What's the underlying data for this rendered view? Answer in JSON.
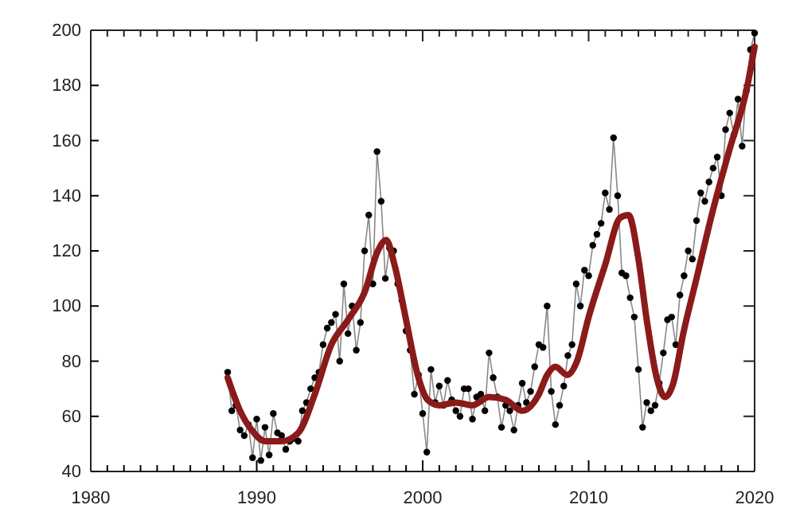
{
  "chart_data": {
    "type": "line",
    "xlim": [
      1980,
      2020
    ],
    "ylim": [
      40,
      200
    ],
    "xticks": [
      1980,
      {
        "value": 1981,
        "label": null
      },
      {
        "value": 1982,
        "label": null
      },
      {
        "value": 1983,
        "label": null
      },
      {
        "value": 1984,
        "label": null
      },
      {
        "value": 1985,
        "label": null
      },
      {
        "value": 1986,
        "label": null
      },
      {
        "value": 1987,
        "label": null
      },
      {
        "value": 1988,
        "label": null
      },
      {
        "value": 1989,
        "label": null
      },
      1990,
      {
        "value": 1991,
        "label": null
      },
      {
        "value": 1992,
        "label": null
      },
      {
        "value": 1993,
        "label": null
      },
      {
        "value": 1994,
        "label": null
      },
      {
        "value": 1995,
        "label": null
      },
      {
        "value": 1996,
        "label": null
      },
      {
        "value": 1997,
        "label": null
      },
      {
        "value": 1998,
        "label": null
      },
      {
        "value": 1999,
        "label": null
      },
      2000,
      {
        "value": 2001,
        "label": null
      },
      {
        "value": 2002,
        "label": null
      },
      {
        "value": 2003,
        "label": null
      },
      {
        "value": 2004,
        "label": null
      },
      {
        "value": 2005,
        "label": null
      },
      {
        "value": 2006,
        "label": null
      },
      {
        "value": 2007,
        "label": null
      },
      {
        "value": 2008,
        "label": null
      },
      {
        "value": 2009,
        "label": null
      },
      2010,
      {
        "value": 2011,
        "label": null
      },
      {
        "value": 2012,
        "label": null
      },
      {
        "value": 2013,
        "label": null
      },
      {
        "value": 2014,
        "label": null
      },
      {
        "value": 2015,
        "label": null
      },
      {
        "value": 2016,
        "label": null
      },
      {
        "value": 2017,
        "label": null
      },
      {
        "value": 2018,
        "label": null
      },
      {
        "value": 2019,
        "label": null
      },
      2020
    ],
    "yticks": [
      40,
      60,
      80,
      100,
      120,
      140,
      160,
      180,
      200
    ],
    "grid": false,
    "legend": false,
    "series": [
      {
        "color": "#000000",
        "marker": "circle",
        "line_style": "solid",
        "x": [
          1988.25,
          1988.5,
          1988.75,
          1989.0,
          1989.25,
          1989.5,
          1989.75,
          1990.0,
          1990.25,
          1990.5,
          1990.75,
          1991.0,
          1991.25,
          1991.5,
          1991.75,
          1992.0,
          1992.25,
          1992.5,
          1992.75,
          1993.0,
          1993.25,
          1993.5,
          1993.75,
          1994.0,
          1994.25,
          1994.5,
          1994.75,
          1995.0,
          1995.25,
          1995.5,
          1995.75,
          1996.0,
          1996.25,
          1996.5,
          1996.75,
          1997.0,
          1997.25,
          1997.5,
          1997.75,
          1998.0,
          1998.25,
          1998.5,
          1998.75,
          1999.0,
          1999.25,
          1999.5,
          1999.75,
          2000.0,
          2000.25,
          2000.5,
          2000.75,
          2001.0,
          2001.25,
          2001.5,
          2001.75,
          2002.0,
          2002.25,
          2002.5,
          2002.75,
          2003.0,
          2003.25,
          2003.5,
          2003.75,
          2004.0,
          2004.25,
          2004.5,
          2004.75,
          2005.0,
          2005.25,
          2005.5,
          2005.75,
          2006.0,
          2006.25,
          2006.5,
          2006.75,
          2007.0,
          2007.25,
          2007.5,
          2007.75,
          2008.0,
          2008.25,
          2008.5,
          2008.75,
          2009.0,
          2009.25,
          2009.5,
          2009.75,
          2010.0,
          2010.25,
          2010.5,
          2010.75,
          2011.0,
          2011.25,
          2011.5,
          2011.75,
          2012.0,
          2012.25,
          2012.5,
          2012.75,
          2013.0,
          2013.25,
          2013.5,
          2013.75,
          2014.0,
          2014.25,
          2014.5,
          2014.75,
          2015.0,
          2015.25,
          2015.5,
          2015.75,
          2016.0,
          2016.25,
          2016.5,
          2016.75,
          2017.0,
          2017.25,
          2017.5,
          2017.75,
          2018.0,
          2018.25,
          2018.5,
          2018.75,
          2019.0,
          2019.25,
          2019.5,
          2019.75,
          2020.0
        ],
        "values": [
          76,
          62,
          64,
          55,
          53,
          57,
          45,
          59,
          44,
          56,
          46,
          61,
          54,
          53,
          48,
          51,
          52,
          51,
          62,
          65,
          70,
          74,
          76,
          86,
          92,
          94,
          97,
          80,
          108,
          90,
          100,
          84,
          94,
          120,
          133,
          108,
          156,
          138,
          110,
          121,
          120,
          108,
          102,
          91,
          84,
          68,
          75,
          61,
          47,
          77,
          65,
          71,
          64,
          73,
          66,
          62,
          60,
          70,
          70,
          59,
          67,
          68,
          62,
          83,
          74,
          67,
          56,
          64,
          62,
          55,
          64,
          72,
          65,
          69,
          78,
          86,
          85,
          100,
          69,
          57,
          64,
          71,
          82,
          86,
          108,
          100,
          113,
          111,
          122,
          126,
          130,
          141,
          135,
          161,
          140,
          112,
          111,
          103,
          96,
          77,
          56,
          65,
          62,
          64,
          72,
          83,
          95,
          96,
          86,
          104,
          111,
          120,
          117,
          131,
          141,
          138,
          145,
          150,
          154,
          140,
          164,
          170,
          162,
          175,
          158,
          178,
          193,
          199
        ]
      },
      {
        "color": "#8b1a1a",
        "marker": "none",
        "line_style": "solid",
        "x": [
          1988.25,
          1989.0,
          1989.7,
          1990.5,
          1991.5,
          1992.5,
          1993.5,
          1994.5,
          1995.5,
          1996.5,
          1997.3,
          1997.8,
          1998.3,
          1999.0,
          1999.7,
          2000.3,
          2001.0,
          2002.0,
          2003.0,
          2004.0,
          2005.0,
          2006.0,
          2007.0,
          2007.5,
          2008.0,
          2008.7,
          2009.3,
          2010.0,
          2011.0,
          2011.9,
          2012.4,
          2013.0,
          2013.5,
          2014.1,
          2014.6,
          2015.1,
          2015.7,
          2016.5,
          2017.5,
          2018.5,
          2019.5,
          2020.0
        ],
        "values": [
          74,
          62,
          55,
          51,
          51,
          54,
          68,
          86,
          95,
          105,
          120,
          124,
          115,
          95,
          75,
          66,
          64,
          65,
          64,
          67,
          66,
          62,
          68,
          75,
          78,
          75,
          80,
          96,
          115,
          132,
          133,
          117,
          95,
          74,
          67,
          72,
          90,
          110,
          135,
          157,
          178,
          194
        ]
      }
    ]
  }
}
